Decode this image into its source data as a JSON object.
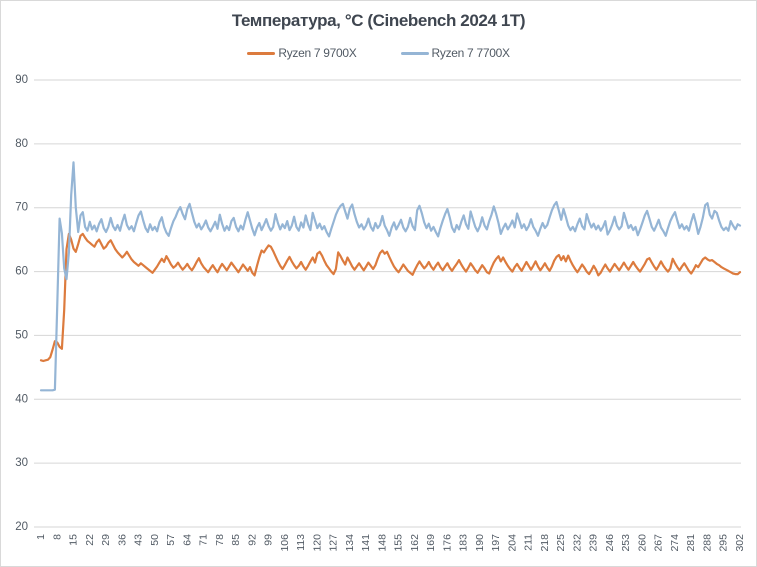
{
  "chart_data": {
    "type": "line",
    "title": "Температура, °C (Cinebench 2024 1T)",
    "xlabel": "",
    "ylabel": "",
    "x_start": 1,
    "x_step": 1,
    "x_count": 302,
    "x_tick_step": 7,
    "ylim": [
      20,
      90
    ],
    "y_tick_step": 10,
    "grid": true,
    "legend_position": "top",
    "colors": {
      "grid": "#d6d6d6",
      "border": "#d9d9d9",
      "axis_text": "#515a64",
      "title_text": "#3f4650"
    },
    "series": [
      {
        "name": "Ryzen 7 9700X",
        "color": "#dc7b3e",
        "values": [
          46.1,
          46.0,
          46.1,
          46.2,
          46.6,
          47.8,
          49.1,
          48.9,
          48.2,
          47.9,
          54.0,
          63.5,
          65.9,
          65.0,
          63.6,
          63.1,
          64.3,
          65.6,
          65.9,
          65.3,
          64.8,
          64.5,
          64.2,
          63.9,
          64.6,
          65.0,
          64.3,
          63.6,
          63.9,
          64.5,
          64.9,
          64.2,
          63.5,
          63.0,
          62.6,
          62.2,
          62.6,
          63.1,
          62.5,
          61.9,
          61.5,
          61.2,
          60.9,
          61.3,
          61.0,
          60.7,
          60.4,
          60.1,
          59.8,
          60.3,
          60.8,
          61.4,
          62.0,
          61.5,
          62.4,
          61.8,
          61.1,
          60.6,
          60.9,
          61.4,
          60.8,
          60.3,
          60.7,
          61.2,
          60.6,
          60.2,
          60.8,
          61.5,
          62.1,
          61.3,
          60.7,
          60.3,
          59.9,
          60.5,
          61.0,
          60.4,
          59.9,
          60.6,
          61.2,
          60.7,
          60.2,
          60.8,
          61.4,
          60.9,
          60.4,
          59.9,
          60.5,
          61.1,
          60.6,
          60.1,
          60.7,
          59.8,
          59.4,
          60.9,
          62.2,
          63.3,
          63.0,
          63.6,
          64.1,
          63.9,
          63.2,
          62.4,
          61.6,
          60.9,
          60.4,
          61.0,
          61.7,
          62.3,
          61.6,
          61.0,
          60.5,
          60.9,
          61.5,
          60.8,
          60.3,
          60.9,
          61.6,
          62.2,
          61.4,
          62.8,
          63.1,
          62.5,
          61.7,
          61.0,
          60.5,
          60.0,
          59.6,
          60.4,
          63.0,
          62.4,
          61.7,
          61.1,
          62.2,
          61.5,
          60.8,
          60.3,
          60.8,
          61.3,
          60.7,
          60.2,
          60.8,
          61.4,
          60.9,
          60.4,
          61.0,
          62.0,
          62.9,
          63.3,
          62.8,
          63.1,
          62.3,
          61.5,
          60.8,
          60.3,
          59.9,
          60.5,
          61.1,
          60.6,
          60.1,
          59.8,
          59.5,
          60.3,
          61.0,
          61.6,
          61.0,
          60.5,
          60.9,
          61.5,
          60.8,
          60.3,
          60.9,
          61.4,
          60.7,
          60.2,
          60.8,
          61.3,
          60.6,
          60.1,
          60.7,
          61.2,
          61.8,
          61.1,
          60.5,
          60.0,
          60.6,
          61.3,
          60.8,
          60.2,
          59.8,
          60.4,
          61.0,
          60.5,
          59.9,
          59.7,
          60.6,
          61.4,
          62.0,
          62.4,
          61.6,
          62.2,
          61.5,
          60.9,
          60.4,
          60.0,
          60.7,
          61.2,
          60.6,
          60.1,
          60.8,
          61.5,
          60.9,
          60.3,
          60.9,
          61.6,
          60.8,
          60.2,
          60.7,
          61.3,
          60.6,
          60.1,
          60.8,
          61.7,
          62.3,
          62.6,
          61.8,
          62.4,
          61.6,
          62.5,
          61.7,
          61.0,
          60.4,
          59.9,
          60.5,
          61.1,
          60.6,
          60.0,
          59.6,
          60.2,
          60.9,
          60.3,
          59.4,
          59.8,
          60.5,
          61.1,
          60.5,
          60.0,
          60.6,
          61.2,
          60.7,
          60.2,
          60.8,
          61.4,
          60.8,
          60.3,
          60.9,
          61.5,
          60.9,
          60.4,
          60.0,
          60.6,
          61.2,
          61.9,
          62.1,
          61.4,
          60.8,
          60.3,
          60.9,
          61.6,
          60.9,
          60.4,
          60.0,
          60.5,
          62.0,
          61.3,
          60.7,
          60.2,
          60.8,
          61.3,
          60.7,
          60.1,
          59.7,
          60.3,
          61.0,
          60.7,
          61.3,
          61.9,
          62.2,
          61.9,
          61.7,
          61.8,
          61.5,
          61.2,
          61.0,
          60.7,
          60.5,
          60.3,
          60.1,
          59.9,
          59.7,
          59.6,
          59.6,
          59.9
        ]
      },
      {
        "name": "Ryzen 7 7700X",
        "color": "#95b5d5",
        "values": [
          41.4,
          41.4,
          41.4,
          41.4,
          41.4,
          41.4,
          41.5,
          55.0,
          68.3,
          66.0,
          60.5,
          58.8,
          63.0,
          72.0,
          77.1,
          70.0,
          66.2,
          68.8,
          69.3,
          67.0,
          66.4,
          67.8,
          66.6,
          67.2,
          66.3,
          67.5,
          68.2,
          66.8,
          66.2,
          67.0,
          68.4,
          67.1,
          66.5,
          67.3,
          66.4,
          67.8,
          68.9,
          67.3,
          66.6,
          67.1,
          66.3,
          67.6,
          68.8,
          69.4,
          68.0,
          66.8,
          66.2,
          67.4,
          66.5,
          67.0,
          66.3,
          67.7,
          68.5,
          67.0,
          66.1,
          65.6,
          66.8,
          67.9,
          68.6,
          69.5,
          70.1,
          69.0,
          68.2,
          69.8,
          70.6,
          69.2,
          67.8,
          66.9,
          67.5,
          66.6,
          67.2,
          68.0,
          66.9,
          66.3,
          67.0,
          67.8,
          66.7,
          68.9,
          67.5,
          66.4,
          67.1,
          66.5,
          67.9,
          68.4,
          67.0,
          66.3,
          67.2,
          66.6,
          68.1,
          69.3,
          68.0,
          66.7,
          65.7,
          66.9,
          67.6,
          66.5,
          67.3,
          68.2,
          67.1,
          66.4,
          67.0,
          69.0,
          67.6,
          66.6,
          67.4,
          66.8,
          67.9,
          66.5,
          67.2,
          68.6,
          67.0,
          66.4,
          67.7,
          66.9,
          68.8,
          67.4,
          66.5,
          69.2,
          68.0,
          66.8,
          67.5,
          66.6,
          67.1,
          66.2,
          65.5,
          66.7,
          67.8,
          68.9,
          69.7,
          70.3,
          70.6,
          69.4,
          68.3,
          69.9,
          70.5,
          69.0,
          67.8,
          66.9,
          67.4,
          66.6,
          67.2,
          68.3,
          67.0,
          66.4,
          67.6,
          66.8,
          67.3,
          68.7,
          67.2,
          66.5,
          65.6,
          66.9,
          67.7,
          66.6,
          67.3,
          68.1,
          66.9,
          66.3,
          67.0,
          68.4,
          67.1,
          66.5,
          69.6,
          70.3,
          69.1,
          67.7,
          66.8,
          67.5,
          66.4,
          67.0,
          66.2,
          65.5,
          66.8,
          68.0,
          69.0,
          69.8,
          68.5,
          66.9,
          66.2,
          67.3,
          66.6,
          67.8,
          68.8,
          67.4,
          66.7,
          69.4,
          68.2,
          67.0,
          66.3,
          67.1,
          68.5,
          67.2,
          66.6,
          67.9,
          68.9,
          70.2,
          69.0,
          67.6,
          65.9,
          66.8,
          67.5,
          66.6,
          67.2,
          68.0,
          66.9,
          69.1,
          68.0,
          66.8,
          67.4,
          66.5,
          67.1,
          68.2,
          67.0,
          66.4,
          65.6,
          66.7,
          67.6,
          66.8,
          67.3,
          68.5,
          69.6,
          70.4,
          70.9,
          69.5,
          68.1,
          69.8,
          68.6,
          67.2,
          66.5,
          67.0,
          66.3,
          67.4,
          68.3,
          67.1,
          66.6,
          69.0,
          67.8,
          66.9,
          67.5,
          66.6,
          67.2,
          66.4,
          67.0,
          67.9,
          65.8,
          66.5,
          67.4,
          68.6,
          67.2,
          66.6,
          67.1,
          69.2,
          68.0,
          66.8,
          67.3,
          66.5,
          67.0,
          65.7,
          66.6,
          67.7,
          68.8,
          69.5,
          68.3,
          67.0,
          66.4,
          67.2,
          68.1,
          66.9,
          66.3,
          65.6,
          66.8,
          67.9,
          68.7,
          69.3,
          68.0,
          66.8,
          67.4,
          66.6,
          67.1,
          66.4,
          67.8,
          69.0,
          67.6,
          65.9,
          67.0,
          68.4,
          70.4,
          70.7,
          68.9,
          68.3,
          69.5,
          69.2,
          68.0,
          67.0,
          66.5,
          66.9,
          66.4,
          67.9,
          67.2,
          66.6,
          67.4,
          67.2
        ]
      }
    ]
  }
}
